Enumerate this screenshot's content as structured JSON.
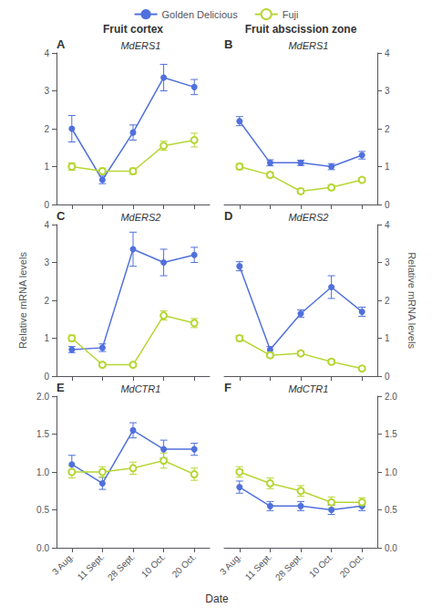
{
  "chart_data": [
    {
      "type": "line",
      "title": "Fruit cortex",
      "annotations": [
        "A",
        "MdERS1"
      ],
      "categories": [
        "3 Aug.",
        "11 Sept.",
        "28 Sept.",
        "10 Oct.",
        "20 Oct."
      ],
      "series": [
        {
          "name": "Golden Delicious",
          "marker": "circle",
          "values": [
            2.0,
            0.65,
            1.9,
            3.35,
            3.1
          ],
          "errors": [
            0.35,
            0.1,
            0.2,
            0.35,
            0.2
          ]
        },
        {
          "name": "Fuji",
          "marker": "emptyCircle",
          "values": [
            1.0,
            0.88,
            0.88,
            1.55,
            1.7
          ],
          "errors": [
            0.1,
            0.08,
            0.08,
            0.12,
            0.18
          ]
        }
      ],
      "ylim": [
        0,
        4
      ],
      "yticks": [
        0,
        1,
        2,
        3,
        4
      ],
      "grid": false,
      "legend": "top",
      "tick_labels": "y"
    },
    {
      "type": "line",
      "title": "Fruit abscission zone",
      "annotations": [
        "B",
        "MdERS1"
      ],
      "categories": [
        "3 Aug.",
        "11 Sept.",
        "28 Sept.",
        "10 Oct.",
        "20 Oct."
      ],
      "series": [
        {
          "name": "Golden Delicious",
          "marker": "circle",
          "values": [
            2.2,
            1.1,
            1.1,
            1.0,
            1.3
          ],
          "errors": [
            0.12,
            0.08,
            0.07,
            0.08,
            0.1
          ]
        },
        {
          "name": "Fuji",
          "marker": "emptyCircle",
          "values": [
            1.0,
            0.78,
            0.35,
            0.45,
            0.65
          ],
          "errors": [
            0.08,
            0.07,
            0.06,
            0.06,
            0.06
          ]
        }
      ],
      "ylim": [
        0,
        4
      ],
      "yticks": [
        0,
        1,
        2,
        3,
        4
      ],
      "grid": false,
      "tick_labels": "y"
    },
    {
      "type": "line",
      "ylabel": "Relative mRNA levels",
      "annotations": [
        "C",
        "MdERS2"
      ],
      "categories": [
        "3 Aug.",
        "11 Sept.",
        "28 Sept.",
        "10 Oct.",
        "20 Oct."
      ],
      "series": [
        {
          "name": "Golden Delicious",
          "marker": "circle",
          "values": [
            0.7,
            0.75,
            3.35,
            3.0,
            3.2
          ],
          "errors": [
            0.08,
            0.1,
            0.45,
            0.35,
            0.2
          ]
        },
        {
          "name": "Fuji",
          "marker": "emptyCircle",
          "values": [
            1.0,
            0.3,
            0.3,
            1.6,
            1.4
          ],
          "errors": [
            0.08,
            0.05,
            0.05,
            0.12,
            0.12
          ]
        }
      ],
      "ylim": [
        0,
        4
      ],
      "yticks": [
        0,
        1,
        2,
        3,
        4
      ],
      "grid": false,
      "tick_labels": "y"
    },
    {
      "type": "line",
      "ylabel": "Relative mRNA levels",
      "annotations": [
        "D",
        "MdERS2"
      ],
      "categories": [
        "3 Aug.",
        "11 Sept.",
        "28 Sept.",
        "10 Oct.",
        "20 Oct."
      ],
      "series": [
        {
          "name": "Golden Delicious",
          "marker": "circle",
          "values": [
            2.9,
            0.7,
            1.65,
            2.35,
            1.7
          ],
          "errors": [
            0.12,
            0.08,
            0.1,
            0.3,
            0.12
          ]
        },
        {
          "name": "Fuji",
          "marker": "emptyCircle",
          "values": [
            1.0,
            0.55,
            0.6,
            0.38,
            0.2
          ],
          "errors": [
            0.07,
            0.06,
            0.06,
            0.05,
            0.05
          ]
        }
      ],
      "ylim": [
        0,
        4
      ],
      "yticks": [
        0,
        1,
        2,
        3,
        4
      ],
      "grid": false,
      "tick_labels": "y"
    },
    {
      "type": "line",
      "xlabel": "Date",
      "annotations": [
        "E",
        "MdCTR1"
      ],
      "categories": [
        "3 Aug.",
        "11 Sept.",
        "28 Sept.",
        "10 Oct.",
        "20 Oct."
      ],
      "series": [
        {
          "name": "Golden Delicious",
          "marker": "circle",
          "values": [
            1.1,
            0.85,
            1.55,
            1.3,
            1.3
          ],
          "errors": [
            0.12,
            0.08,
            0.1,
            0.12,
            0.08
          ]
        },
        {
          "name": "Fuji",
          "marker": "emptyCircle",
          "values": [
            1.0,
            1.0,
            1.05,
            1.15,
            0.97
          ],
          "errors": [
            0.08,
            0.07,
            0.08,
            0.1,
            0.08
          ]
        }
      ],
      "ylim": [
        0.0,
        2.0
      ],
      "yticks": [
        {
          "value": 0.0,
          "label": "0.0"
        },
        0.5,
        {
          "value": 1.0,
          "label": "1.0"
        },
        1.5,
        {
          "value": 2.0,
          "label": "2.0"
        }
      ],
      "grid": false
    },
    {
      "type": "line",
      "annotations": [
        "F",
        "MdCTR1"
      ],
      "categories": [
        "3 Aug.",
        "11 Sept.",
        "28 Sept.",
        "10 Oct.",
        "20 Oct."
      ],
      "series": [
        {
          "name": "Golden Delicious",
          "marker": "circle",
          "values": [
            0.8,
            0.55,
            0.55,
            0.5,
            0.55
          ],
          "errors": [
            0.08,
            0.06,
            0.06,
            0.06,
            0.06
          ]
        },
        {
          "name": "Fuji",
          "marker": "emptyCircle",
          "values": [
            1.0,
            0.85,
            0.75,
            0.6,
            0.6
          ],
          "errors": [
            0.07,
            0.07,
            0.07,
            0.07,
            0.06
          ]
        }
      ],
      "ylim": [
        0.0,
        2.0
      ],
      "yticks": [
        {
          "value": 0.0,
          "label": "0.0"
        },
        0.5,
        {
          "value": 1.0,
          "label": "1.0"
        },
        1.5,
        {
          "value": 2.0,
          "label": "2.0"
        }
      ],
      "grid": false
    }
  ]
}
